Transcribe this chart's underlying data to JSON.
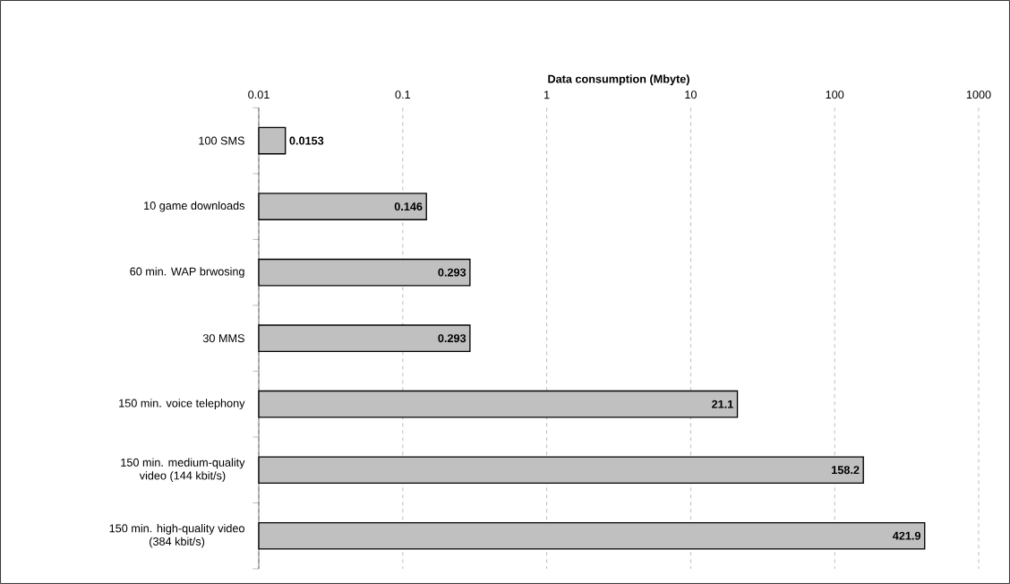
{
  "chart_data": {
    "type": "bar",
    "orientation": "horizontal",
    "xlabel": "Data consumption (Mbyte)",
    "categories": [
      "100 SMS",
      "10 game downloads",
      "60 min. WAP brwosing",
      "30 MMS",
      "150 min. voice telephony",
      "150 min. medium-quality video (144 kbit/s)",
      "150 min. high-quality video (384 kbit/s)"
    ],
    "values": [
      0.0153,
      0.146,
      0.293,
      0.293,
      21.1,
      158.2,
      421.9
    ],
    "color": "#c0c0c0",
    "log": "x",
    "xlim": [
      0.01,
      1000
    ],
    "xticks": [
      0.01,
      0.1,
      1,
      10,
      100,
      1000
    ],
    "grid": "x",
    "data_labels": true
  }
}
